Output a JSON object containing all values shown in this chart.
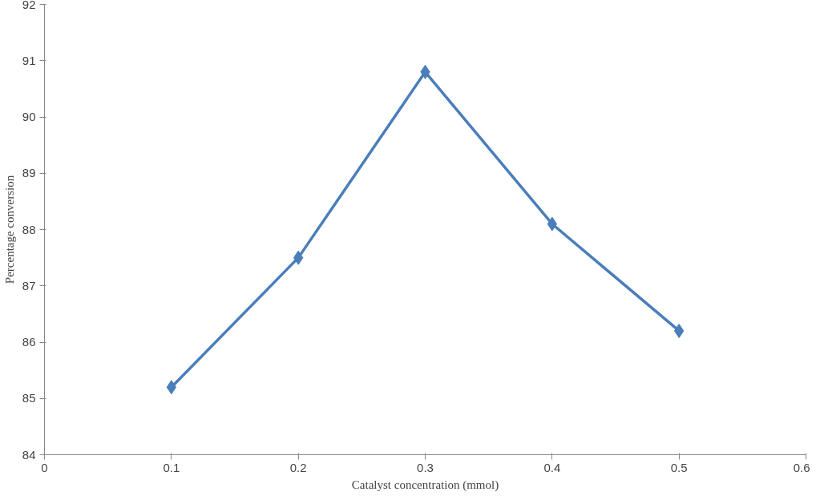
{
  "chart_data": {
    "type": "line",
    "xlabel": "Catalyst concentration (mmol)",
    "ylabel": "Percentage conversion",
    "x": [
      0.1,
      0.2,
      0.3,
      0.4,
      0.5
    ],
    "series": [
      {
        "color": "#4a7ebb",
        "values": [
          85.2,
          87.5,
          90.8,
          88.1,
          86.2
        ]
      }
    ],
    "xlim": [
      0,
      0.6
    ],
    "xticks": [
      0,
      0.1,
      0.2,
      0.3,
      0.4,
      0.5,
      0.6
    ],
    "ylim": [
      84,
      92
    ],
    "yticks": [
      84,
      85,
      86,
      87,
      88,
      89,
      90,
      91,
      92
    ],
    "marker": "diamond",
    "line_style": "solid",
    "grid": false
  }
}
